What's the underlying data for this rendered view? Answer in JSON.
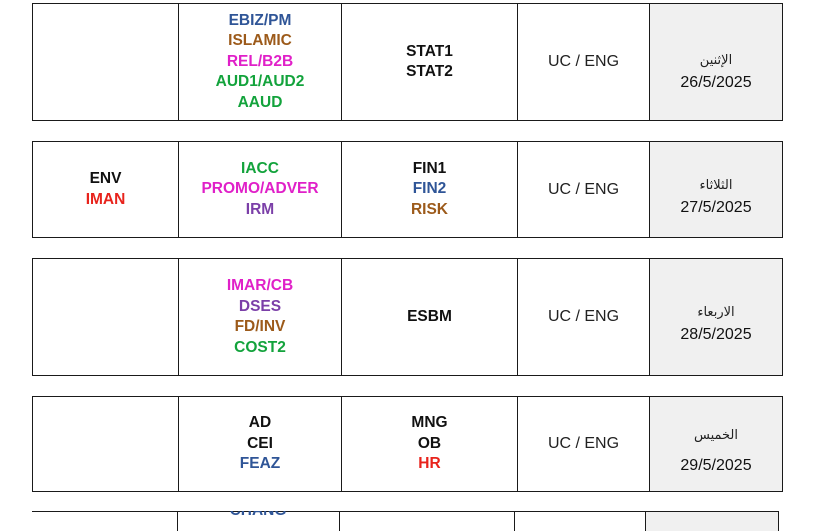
{
  "colors": {
    "blue": "#2f5597",
    "brown": "#9c5a1a",
    "magenta": "#e020c8",
    "green": "#13a33c",
    "red": "#e8231c",
    "purple": "#7b3fa8",
    "black": "#111111",
    "day_fill": "#f0f0f0"
  },
  "rows": [
    {
      "left": [],
      "electives": [
        {
          "text": "EBIZ/PM",
          "color": "#2f5597"
        },
        {
          "text": "ISLAMIC",
          "color": "#9c5a1a"
        },
        {
          "text": "REL/B2B",
          "color": "#e020c8"
        },
        {
          "text": "AUD1/AUD2",
          "color": "#13a33c"
        },
        {
          "text": "AAUD",
          "color": "#13a33c"
        }
      ],
      "core": [
        {
          "text": "STAT1",
          "color": "#111111"
        },
        {
          "text": "STAT2",
          "color": "#111111"
        }
      ],
      "lang": "UC / ENG",
      "day": "الإثنين",
      "date": "26/5/2025"
    },
    {
      "left": [
        {
          "text": "ENV",
          "color": "#111111"
        },
        {
          "text": "IMAN",
          "color": "#e8231c"
        }
      ],
      "electives": [
        {
          "text": "IACC",
          "color": "#13a33c"
        },
        {
          "text": "PROMO/ADVER",
          "color": "#e020c8"
        },
        {
          "text": "IRM",
          "color": "#7b3fa8"
        }
      ],
      "core": [
        {
          "text": "FIN1",
          "color": "#111111"
        },
        {
          "text": "FIN2",
          "color": "#2f5597"
        },
        {
          "text": "RISK",
          "color": "#9c5a1a"
        }
      ],
      "lang": "UC / ENG",
      "day": "الثلاثاء",
      "date": "27/5/2025"
    },
    {
      "left": [],
      "electives": [
        {
          "text": "IMAR/CB",
          "color": "#e020c8"
        },
        {
          "text": "DSES",
          "color": "#7b3fa8"
        },
        {
          "text": "FD/INV",
          "color": "#9c5a1a"
        },
        {
          "text": "COST2",
          "color": "#13a33c"
        }
      ],
      "core": [
        {
          "text": "ESBM",
          "color": "#111111"
        }
      ],
      "lang": "UC / ENG",
      "day": "الاربعاء",
      "date": "28/5/2025"
    },
    {
      "left": [],
      "electives": [
        {
          "text": "AD",
          "color": "#111111"
        },
        {
          "text": "CEI",
          "color": "#111111"
        },
        {
          "text": "FEAZ",
          "color": "#2f5597"
        }
      ],
      "core": [
        {
          "text": "MNG",
          "color": "#111111"
        },
        {
          "text": "OB",
          "color": "#111111"
        },
        {
          "text": "HR",
          "color": "#e8231c"
        }
      ],
      "lang": "UC / ENG",
      "day": "الخميس",
      "date": "29/5/2025"
    }
  ],
  "partial_row": {
    "elective_peek": "CHANG"
  }
}
